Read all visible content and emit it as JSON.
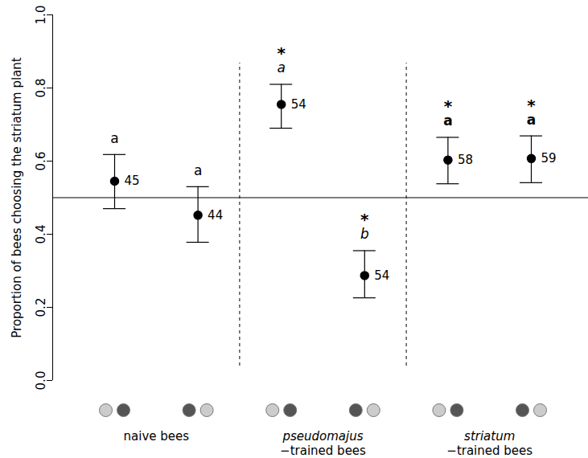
{
  "chart_data": {
    "type": "scatter",
    "y_label": "Proportion of bees choosing the striatum plant",
    "ylim": [
      0,
      1
    ],
    "yticks": [
      {
        "value": 0,
        "label": "0.0"
      },
      0.2,
      0.4,
      0.6,
      0.8,
      {
        "value": 1,
        "label": "1.0"
      }
    ],
    "reference_line": 0.5,
    "color": "#000000",
    "groups": [
      {
        "label": "naive bees",
        "letter_style": "normal",
        "points": [
          {
            "value": 0.545,
            "error_low": 0.47,
            "error_high": 0.618,
            "n": 45,
            "letter": "a",
            "stimulus_colors": [
              "#cccccc",
              "#555555"
            ]
          },
          {
            "value": 0.452,
            "error_low": 0.378,
            "error_high": 0.53,
            "n": 44,
            "letter": "a",
            "stimulus_colors": [
              "#555555",
              "#cccccc"
            ]
          }
        ]
      },
      {
        "species": "pseudomajus",
        "label": "−trained bees",
        "letter_style": "italic",
        "points": [
          {
            "value": 0.755,
            "error_low": 0.69,
            "error_high": 0.81,
            "n": 54,
            "letter": "a",
            "star": "*",
            "stimulus_colors": [
              "#cccccc",
              "#555555"
            ]
          },
          {
            "value": 0.287,
            "error_low": 0.226,
            "error_high": 0.355,
            "n": 54,
            "letter": "b",
            "star": "*",
            "stimulus_colors": [
              "#555555",
              "#cccccc"
            ]
          }
        ]
      },
      {
        "species": "striatum",
        "label": "−trained bees",
        "letter_style": "bold",
        "points": [
          {
            "value": 0.603,
            "error_low": 0.538,
            "error_high": 0.665,
            "n": 58,
            "letter": "a",
            "star": "*",
            "stimulus_colors": [
              "#cccccc",
              "#555555"
            ]
          },
          {
            "value": 0.607,
            "error_low": 0.541,
            "error_high": 0.669,
            "n": 59,
            "letter": "a",
            "star": "*",
            "stimulus_colors": [
              "#555555",
              "#cccccc"
            ]
          }
        ]
      }
    ]
  }
}
